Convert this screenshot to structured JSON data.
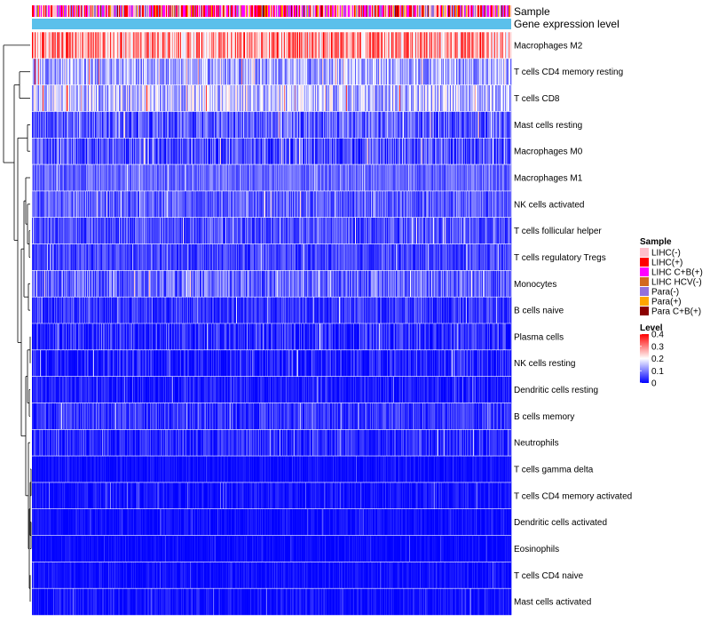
{
  "chart_data": {
    "type": "heatmap",
    "title": "",
    "annotations": {
      "sample_label": "Sample",
      "gene_label": "Gene expression level"
    },
    "rows": [
      {
        "name": "Macrophages M2",
        "mean": 0.27,
        "spread": 0.1
      },
      {
        "name": "T cells CD4 memory resting",
        "mean": 0.13,
        "spread": 0.07
      },
      {
        "name": "T cells CD8",
        "mean": 0.15,
        "spread": 0.08
      },
      {
        "name": "Mast cells resting",
        "mean": 0.07,
        "spread": 0.06
      },
      {
        "name": "Macrophages M0",
        "mean": 0.06,
        "spread": 0.06
      },
      {
        "name": "Macrophages M1",
        "mean": 0.08,
        "spread": 0.04
      },
      {
        "name": "NK cells activated",
        "mean": 0.07,
        "spread": 0.05
      },
      {
        "name": "T cells follicular helper",
        "mean": 0.06,
        "spread": 0.05
      },
      {
        "name": "T cells regulatory  Tregs",
        "mean": 0.05,
        "spread": 0.04
      },
      {
        "name": "Monocytes",
        "mean": 0.08,
        "spread": 0.06
      },
      {
        "name": "B cells naive",
        "mean": 0.04,
        "spread": 0.04
      },
      {
        "name": "Plasma cells",
        "mean": 0.03,
        "spread": 0.05
      },
      {
        "name": "NK cells resting",
        "mean": 0.02,
        "spread": 0.05
      },
      {
        "name": "Dendritic cells resting",
        "mean": 0.02,
        "spread": 0.03
      },
      {
        "name": "B cells memory",
        "mean": 0.04,
        "spread": 0.04
      },
      {
        "name": "Neutrophils",
        "mean": 0.03,
        "spread": 0.04
      },
      {
        "name": "T cells gamma delta",
        "mean": 0.01,
        "spread": 0.02
      },
      {
        "name": "T cells CD4 memory activated",
        "mean": 0.01,
        "spread": 0.03
      },
      {
        "name": "Dendritic cells activated",
        "mean": 0.01,
        "spread": 0.02
      },
      {
        "name": "Eosinophils",
        "mean": 0.005,
        "spread": 0.02
      },
      {
        "name": "T cells CD4 naive",
        "mean": 0.01,
        "spread": 0.02
      },
      {
        "name": "Mast cells activated",
        "mean": 0.01,
        "spread": 0.03
      }
    ],
    "n_samples": 540,
    "color_scale": {
      "title": "Level",
      "min": 0,
      "max": 0.4,
      "ticks": [
        "0.4",
        "0.3",
        "0.2",
        "0.1",
        "0"
      ],
      "tick_values": [
        0.4,
        0.3,
        0.2,
        0.1,
        0
      ],
      "low_color": "#0000ff",
      "mid_color": "#ffffff",
      "high_color": "#ff0000",
      "mid_value": 0.2
    },
    "sample_legend": {
      "title": "Sample",
      "items": [
        {
          "label": "LIHC(-)",
          "color": "#ffc0cb"
        },
        {
          "label": "LIHC(+)",
          "color": "#ff0000"
        },
        {
          "label": "LIHC C+B(+)",
          "color": "#ff00ff"
        },
        {
          "label": "LIHC HCV(-)",
          "color": "#d2691e"
        },
        {
          "label": "Para(-)",
          "color": "#9370db"
        },
        {
          "label": "Para(+)",
          "color": "#ffa500"
        },
        {
          "label": "Para C+B(+)",
          "color": "#8b0000"
        }
      ]
    },
    "gene_bar_color": "#5bc0eb",
    "dendrogram": "hierarchical clustering of cell types (left)"
  }
}
